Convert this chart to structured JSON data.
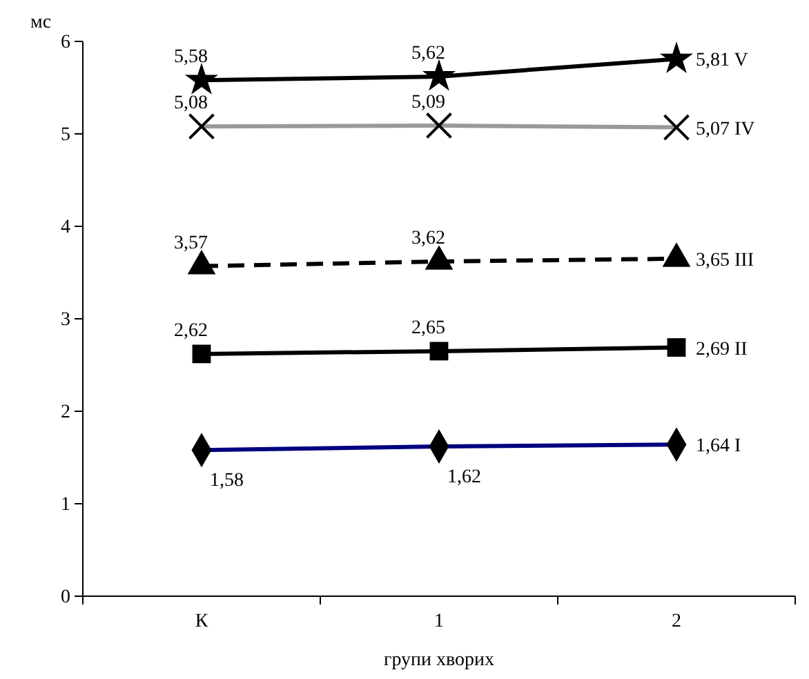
{
  "chart_data": {
    "type": "line",
    "ylabel": "мс",
    "xlabel": "групи хворих",
    "categories": [
      "К",
      "1",
      "2"
    ],
    "ylim": [
      0,
      6
    ],
    "yticks": [
      0,
      1,
      2,
      3,
      4,
      5,
      6
    ],
    "grid": false,
    "legend": false,
    "series": [
      {
        "name": "I",
        "color": "#000080",
        "values": [
          1.58,
          1.62,
          1.64
        ],
        "value_labels": [
          "1,58",
          "1,62",
          "1,64"
        ],
        "marker": "diamond",
        "line_style": "solid"
      },
      {
        "name": "II",
        "color": "#000000",
        "values": [
          2.62,
          2.65,
          2.69
        ],
        "value_labels": [
          "2,62",
          "2,65",
          "2,69"
        ],
        "marker": "square",
        "line_style": "solid"
      },
      {
        "name": "III",
        "color": "#000000",
        "values": [
          3.57,
          3.62,
          3.65
        ],
        "value_labels": [
          "3,57",
          "3,62",
          "3,65"
        ],
        "marker": "triangle",
        "line_style": "dashed"
      },
      {
        "name": "IV",
        "color": "#999999",
        "values": [
          5.08,
          5.09,
          5.07
        ],
        "value_labels": [
          "5,08",
          "5,09",
          "5,07"
        ],
        "marker": "cross",
        "line_style": "solid"
      },
      {
        "name": "V",
        "color": "#000000",
        "values": [
          5.58,
          5.62,
          5.81
        ],
        "value_labels": [
          "5,58",
          "5,62",
          "5,81"
        ],
        "marker": "star",
        "line_style": "solid"
      }
    ]
  }
}
